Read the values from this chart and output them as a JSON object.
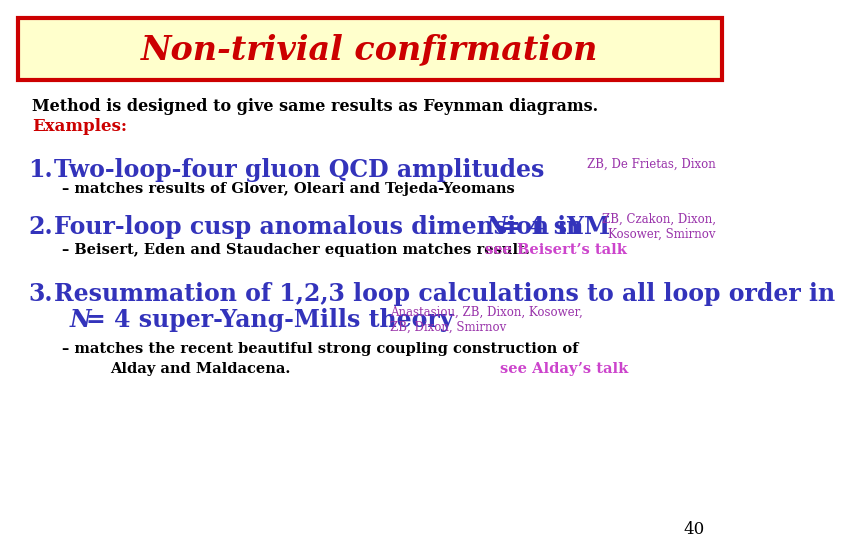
{
  "title": "Non-trivial confirmation",
  "title_color": "#cc0000",
  "title_bg": "#ffffcc",
  "title_border": "#cc0000",
  "bg_color": "#ffffff",
  "page_number": "40",
  "intro_line1": "Method is designed to give same results as Feynman diagrams.",
  "intro_line2": "Examples:",
  "intro_color": "#000000",
  "examples_color": "#cc0000",
  "item1_number": "1.",
  "item1_text": "Two-loop-four gluon QCD amplitudes",
  "item1_ref": "ZB, De Frietas, Dixon",
  "item1_sub": "– matches results of Glover, Oleari and Tejeda-Yeomans",
  "item1_color": "#3333bb",
  "item1_ref_color": "#9933aa",
  "item2_number": "2.",
  "item2_text_pre": "Four-loop cusp anomalous dimension in ",
  "item2_text_N": "N",
  "item2_text_post": "= 4 sYM",
  "item2_ref_line1": "ZB, Czakon, Dixon,",
  "item2_ref_line2": "Kosower, Smirnov",
  "item2_sub": "– Beisert, Eden and Staudacher equation matches result.",
  "item2_see": "see Beisert’s talk",
  "item2_color": "#3333bb",
  "item2_ref_color": "#9933aa",
  "item2_see_color": "#cc44cc",
  "item3_number": "3.",
  "item3_line1": "Resummation of 1,2,3 loop calculations to all loop order in",
  "item3_line2_N": "N",
  "item3_line2_post": "= 4 super-Yang-Mills theory",
  "item3_ref_line1": "Anastasiou, ZB, Dixon, Kosower,",
  "item3_ref_line2": "ZB, Dixon, Smirnov",
  "item3_sub1": "– matches the recent beautiful strong coupling construction of",
  "item3_sub2": "Alday and Maldacena.",
  "item3_see": "see Alday’s talk",
  "item3_color": "#3333bb",
  "item3_ref_color": "#9933aa",
  "item3_see_color": "#cc44cc"
}
